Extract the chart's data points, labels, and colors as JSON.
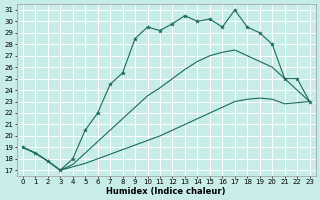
{
  "title": "",
  "xlabel": "Humidex (Indice chaleur)",
  "xlim": [
    -0.5,
    23.5
  ],
  "ylim": [
    16.5,
    31.5
  ],
  "xticks": [
    0,
    1,
    2,
    3,
    4,
    5,
    6,
    7,
    8,
    9,
    10,
    11,
    12,
    13,
    14,
    15,
    16,
    17,
    18,
    19,
    20,
    21,
    22,
    23
  ],
  "yticks": [
    17,
    18,
    19,
    20,
    21,
    22,
    23,
    24,
    25,
    26,
    27,
    28,
    29,
    30,
    31
  ],
  "background_color": "#c8ece8",
  "grid_color": "#ffffff",
  "line_color": "#1a6b5a",
  "curve1_x": [
    0,
    1,
    2,
    3,
    4,
    5,
    6,
    7,
    8,
    9,
    10,
    11,
    12,
    13,
    14,
    15,
    16,
    17,
    18,
    19,
    20,
    21,
    22,
    23
  ],
  "curve1_y": [
    19.0,
    18.5,
    17.8,
    17.0,
    18.0,
    20.5,
    22.0,
    24.5,
    25.5,
    28.5,
    29.5,
    29.2,
    29.8,
    30.5,
    30.0,
    30.2,
    29.5,
    31.0,
    29.5,
    29.0,
    28.0,
    25.0,
    25.0,
    23.0
  ],
  "curve2_x": [
    0,
    1,
    2,
    3,
    4,
    5,
    6,
    7,
    8,
    9,
    10,
    11,
    12,
    13,
    14,
    15,
    16,
    17,
    18,
    19,
    20,
    21,
    22,
    23
  ],
  "curve2_y": [
    19.0,
    18.5,
    17.8,
    17.0,
    17.5,
    18.5,
    19.5,
    20.5,
    21.5,
    22.5,
    23.5,
    24.2,
    25.0,
    25.8,
    26.5,
    27.0,
    27.3,
    27.5,
    27.0,
    26.5,
    26.0,
    25.0,
    24.0,
    23.0
  ],
  "curve3_x": [
    0,
    1,
    2,
    3,
    4,
    5,
    6,
    7,
    8,
    9,
    10,
    11,
    12,
    13,
    14,
    15,
    16,
    17,
    18,
    19,
    20,
    21,
    22,
    23
  ],
  "curve3_y": [
    19.0,
    18.5,
    17.8,
    17.0,
    17.3,
    17.6,
    18.0,
    18.4,
    18.8,
    19.2,
    19.6,
    20.0,
    20.5,
    21.0,
    21.5,
    22.0,
    22.5,
    23.0,
    23.2,
    23.3,
    23.2,
    22.8,
    22.9,
    23.0
  ]
}
